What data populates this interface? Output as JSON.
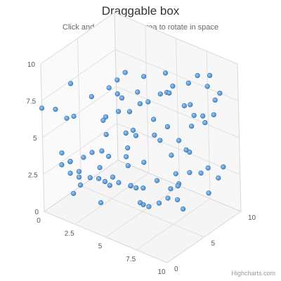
{
  "chart_data": {
    "type": "scatter3d",
    "title": "Draggable box",
    "subtitle": "Click and drag the plot area to rotate in space",
    "credits": "Highcharts.com",
    "axes": {
      "x": {
        "min": 0,
        "max": 10,
        "ticks": [
          "0",
          "2.5",
          "5",
          "7.5",
          "10"
        ]
      },
      "y": {
        "min": 0,
        "max": 10,
        "ticks": [
          "0",
          "2.5",
          "5",
          "7.5",
          "10"
        ]
      },
      "z": {
        "min": 0,
        "max": 10,
        "ticks": [
          "0",
          "5",
          "10"
        ]
      }
    },
    "grid": true,
    "point_color": "#4a8ed0",
    "points": [
      [
        0,
        7.0,
        0
      ],
      [
        1.0,
        7.2,
        0.2
      ],
      [
        2.3,
        9.4,
        0.2
      ],
      [
        2.0,
        6.8,
        1.0
      ],
      [
        0.8,
        5.9,
        2.0
      ],
      [
        3.0,
        8.2,
        1.8
      ],
      [
        3.9,
        8.8,
        2.7
      ],
      [
        4.4,
        9.4,
        3.0
      ],
      [
        4.7,
        9.8,
        3.6
      ],
      [
        5.6,
        9.5,
        4.6
      ],
      [
        6.9,
        9.9,
        5.4
      ],
      [
        8.6,
        9.8,
        6.9
      ],
      [
        9.0,
        9.6,
        7.9
      ],
      [
        8.9,
        8.9,
        7.7
      ],
      [
        9.6,
        8.5,
        8.2
      ],
      [
        9.2,
        7.9,
        8.2
      ],
      [
        9.0,
        6.8,
        8.3
      ],
      [
        7.4,
        7.1,
        7.8
      ],
      [
        7.4,
        7.3,
        7.0
      ],
      [
        6.8,
        8.3,
        6.0
      ],
      [
        6.3,
        8.0,
        6.5
      ],
      [
        5.0,
        8.2,
        4.7
      ],
      [
        3.9,
        8.0,
        3.8
      ],
      [
        2.9,
        6.1,
        3.8
      ],
      [
        2.8,
        5.9,
        3.6
      ],
      [
        3.7,
        6.6,
        4.2
      ],
      [
        4.2,
        7.8,
        3.9
      ],
      [
        4.5,
        6.8,
        4.4
      ],
      [
        5.0,
        7.3,
        5.0
      ],
      [
        5.6,
        7.6,
        5.1
      ],
      [
        6.2,
        8.1,
        5.8
      ],
      [
        6.8,
        8.6,
        6.5
      ],
      [
        7.6,
        8.8,
        7.3
      ],
      [
        5.4,
        6.0,
        6.1
      ],
      [
        5.5,
        5.0,
        6.0
      ],
      [
        6.1,
        5.5,
        6.8
      ],
      [
        5.4,
        4.3,
        6.9
      ],
      [
        4.6,
        5.0,
        5.0
      ],
      [
        4.5,
        5.4,
        4.8
      ],
      [
        3.9,
        5.0,
        4.8
      ],
      [
        2.9,
        4.9,
        3.8
      ],
      [
        3.0,
        4.1,
        3.0
      ],
      [
        2.5,
        4.0,
        2.5
      ],
      [
        2.1,
        3.7,
        2.0
      ],
      [
        1.5,
        3.5,
        1.2
      ],
      [
        1.0,
        4.0,
        0.9
      ],
      [
        1.3,
        3.3,
        1.5
      ],
      [
        1.7,
        2.6,
        2.0
      ],
      [
        2.8,
        2.9,
        3.0
      ],
      [
        3.3,
        3.7,
        3.4
      ],
      [
        4.0,
        3.5,
        4.6
      ],
      [
        4.2,
        3.0,
        4.5
      ],
      [
        4.2,
        4.2,
        4.5
      ],
      [
        5.2,
        3.4,
        5.0
      ],
      [
        6.3,
        3.6,
        6.9
      ],
      [
        7.0,
        3.6,
        8.2
      ],
      [
        7.1,
        4.0,
        7.6
      ],
      [
        7.4,
        2.6,
        7.5
      ],
      [
        7.9,
        2.5,
        8.2
      ],
      [
        8.0,
        2.6,
        9.0
      ],
      [
        8.7,
        2.6,
        9.9
      ],
      [
        7.0,
        2.8,
        6.3
      ],
      [
        6.8,
        1.8,
        7.0
      ],
      [
        6.9,
        1.8,
        6.7
      ],
      [
        8.0,
        0.9,
        9.0
      ],
      [
        8.7,
        2.1,
        9.2
      ],
      [
        6.0,
        2.3,
        5.4
      ],
      [
        5.4,
        1.9,
        4.5
      ],
      [
        4.7,
        2.0,
        4.0
      ],
      [
        4.2,
        2.3,
        3.2
      ],
      [
        3.6,
        2.4,
        3.4
      ],
      [
        3.0,
        2.4,
        2.5
      ],
      [
        2.6,
        2.5,
        2.0
      ],
      [
        2.0,
        2.5,
        1.5
      ],
      [
        1.6,
        2.8,
        1.0
      ],
      [
        1.1,
        3.3,
        0.7
      ],
      [
        1.7,
        1.4,
        1.2
      ],
      [
        2.1,
        2.0,
        1.5
      ],
      [
        3.4,
        1.8,
        3.3
      ],
      [
        3.0,
        0.7,
        2.7
      ],
      [
        3.2,
        2.1,
        3.0
      ],
      [
        4.7,
        1.6,
        4.7
      ],
      [
        5.0,
        0.7,
        4.7
      ],
      [
        5.2,
        0.6,
        4.8
      ],
      [
        6.3,
        0.9,
        6.3
      ],
      [
        6.9,
        0.9,
        6.6
      ],
      [
        6.3,
        1.4,
        6.7
      ],
      [
        7.1,
        0.2,
        7.0
      ],
      [
        5.4,
        0.4,
        5.2
      ],
      [
        6.0,
        0.7,
        5.6
      ],
      [
        4.5,
        1.8,
        4.3
      ],
      [
        6.7,
        4.6,
        7.3
      ],
      [
        7.4,
        5.6,
        7.9
      ],
      [
        7.5,
        6.3,
        8.1
      ],
      [
        8.1,
        6.4,
        8.3
      ],
      [
        8.7,
        6.4,
        7.6
      ]
    ]
  }
}
